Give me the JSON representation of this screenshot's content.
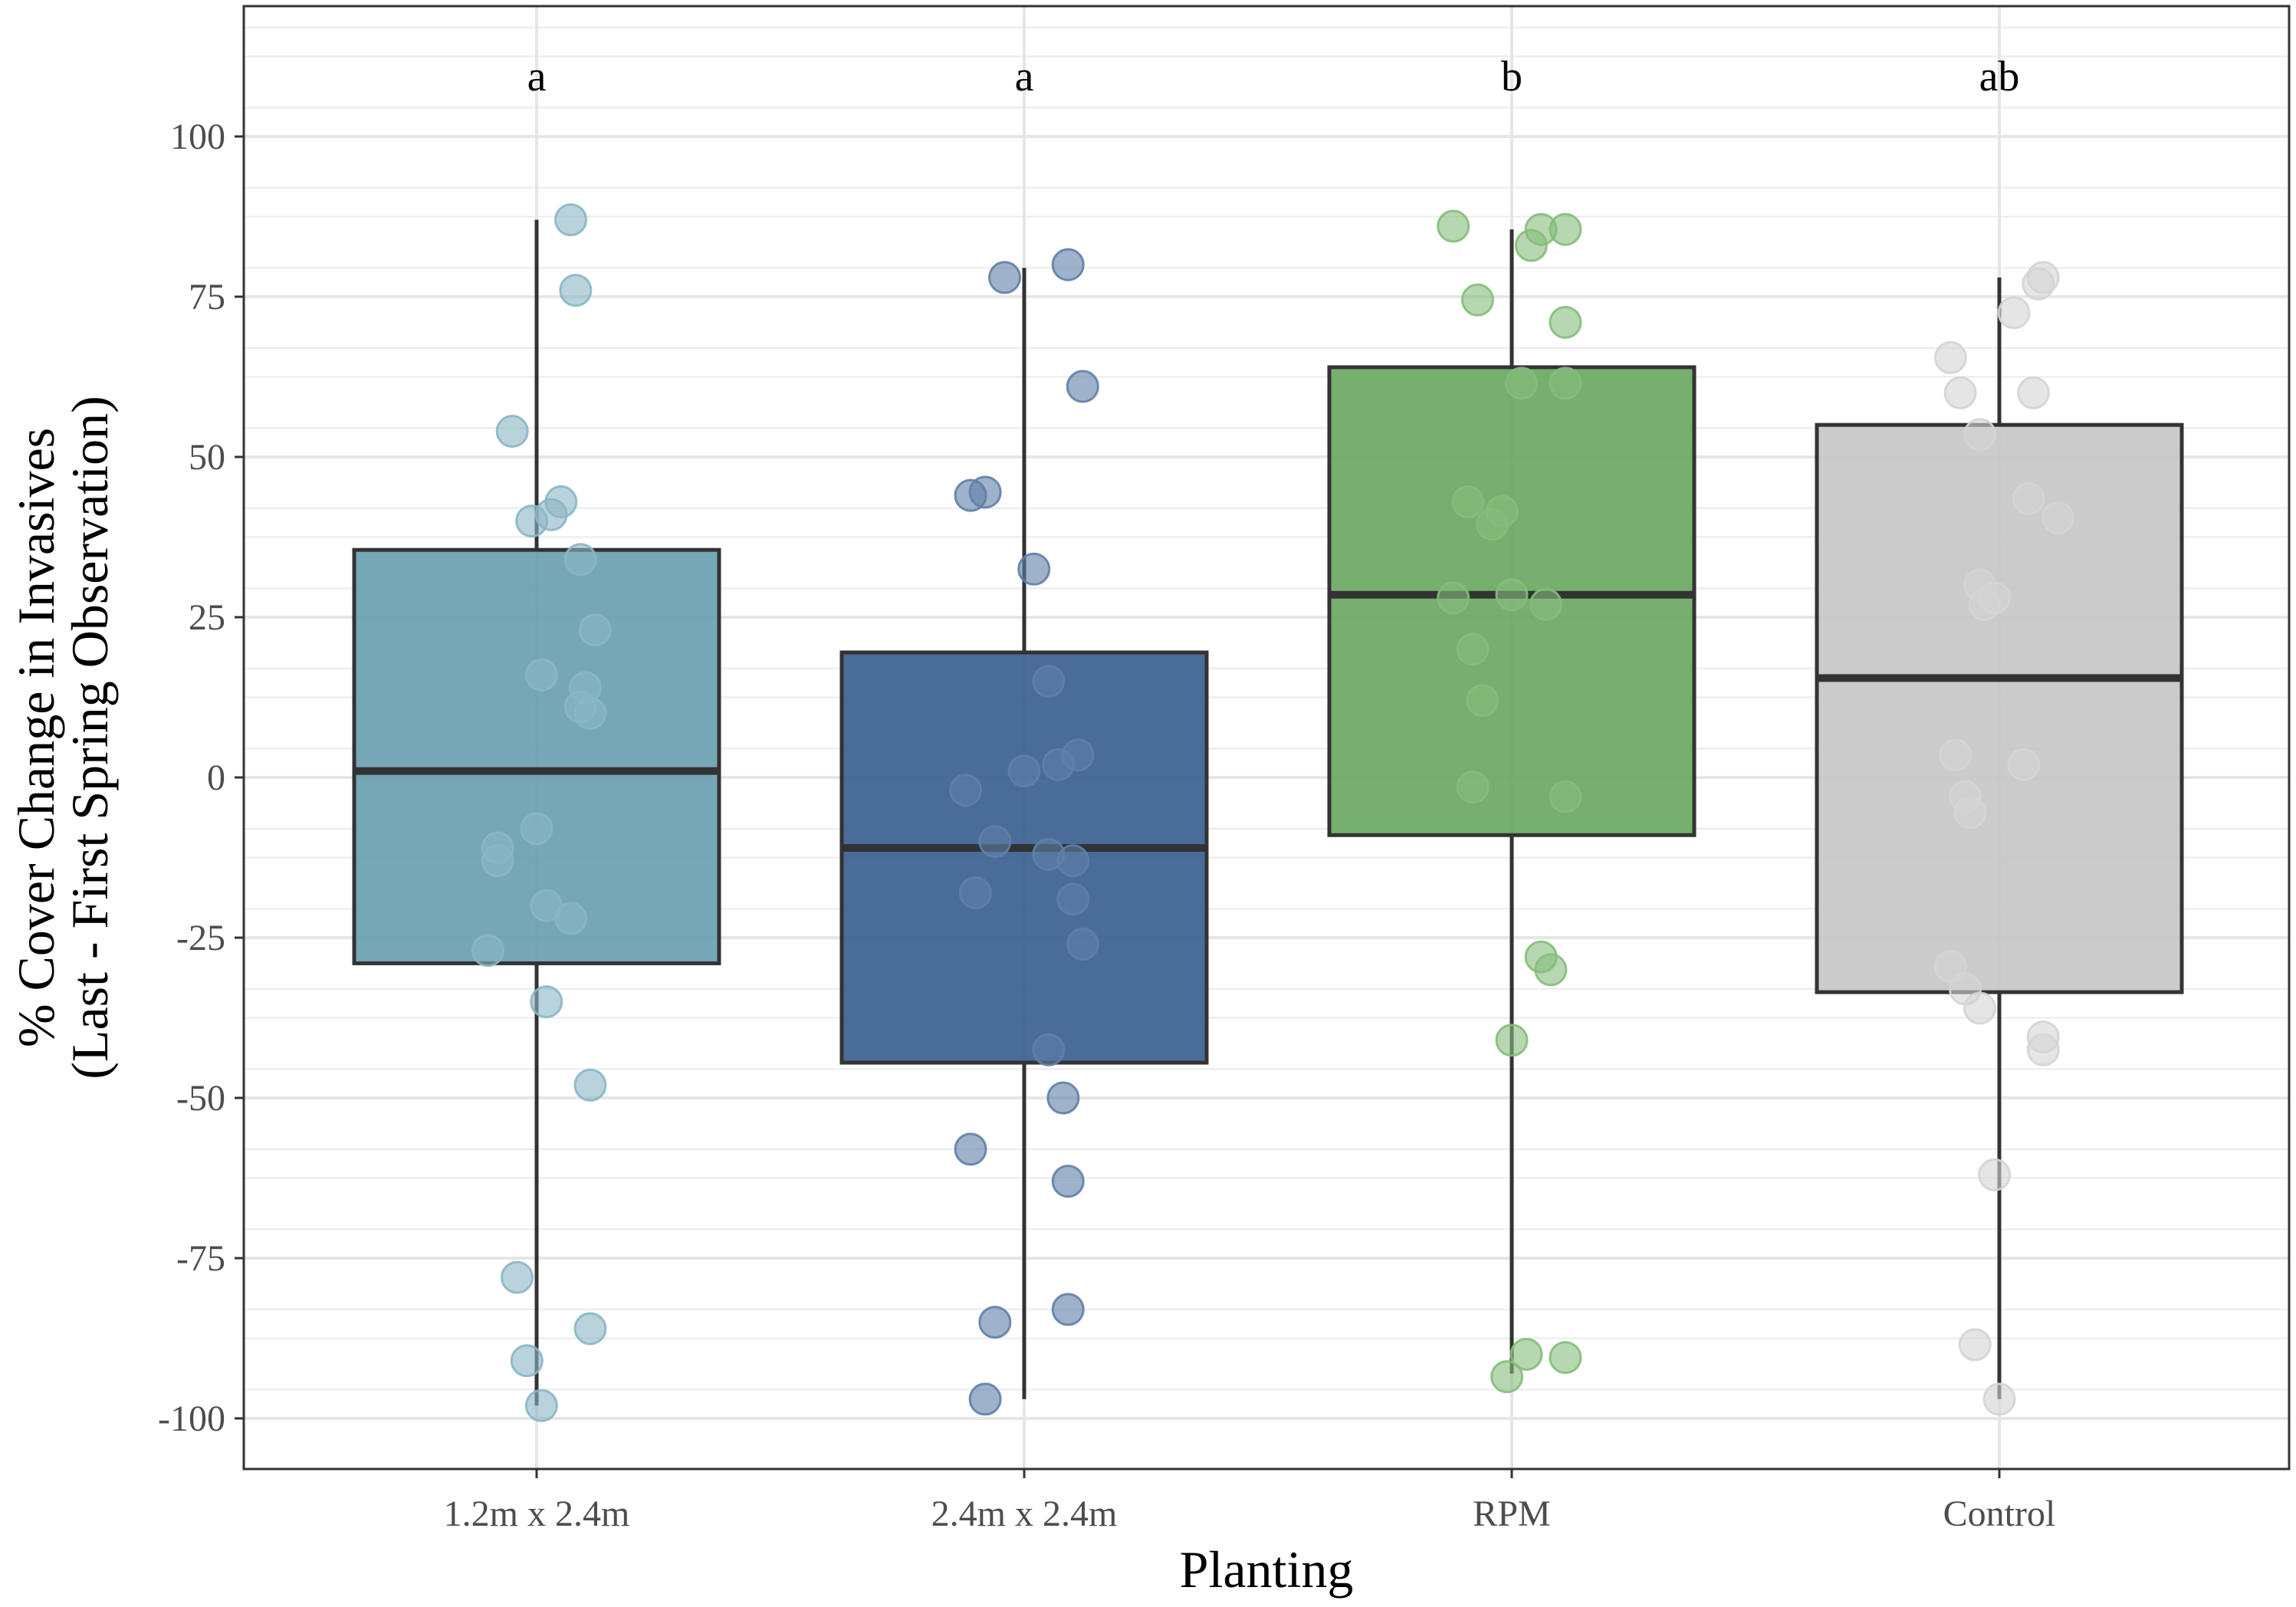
{
  "chart_data": {
    "type": "box",
    "xlabel": "Planting",
    "ylabel_lines": [
      "% Cover Change in Invasives",
      "(Last - First Spring Observation)"
    ],
    "ylim": [
      -108,
      120
    ],
    "yticks": [
      100,
      75,
      50,
      25,
      0,
      -25,
      -50,
      -75,
      -100
    ],
    "ytick_labels": [
      "100",
      "75",
      "50",
      "25",
      "0",
      "-25",
      "-50",
      "-75",
      "-100"
    ],
    "categories": [
      "1.2m x 2.4m",
      "2.4m x 2.4m",
      "RPM",
      "Control"
    ],
    "groups": [
      {
        "name": "1.2m x 2.4m",
        "letter": "a",
        "color": "#6a9fb0",
        "point_color": "#8ab6c4",
        "q1": -29,
        "median": 1,
        "q3": 35.5,
        "whisker_low": -98,
        "whisker_high": 87,
        "points": [
          {
            "dx": 0.07,
            "y": 87
          },
          {
            "dx": 0.08,
            "y": 76
          },
          {
            "dx": -0.05,
            "y": 54
          },
          {
            "dx": 0.05,
            "y": 43
          },
          {
            "dx": 0.03,
            "y": 41
          },
          {
            "dx": -0.01,
            "y": 40
          },
          {
            "dx": 0.09,
            "y": 34
          },
          {
            "dx": 0.12,
            "y": 23
          },
          {
            "dx": 0.01,
            "y": 16
          },
          {
            "dx": 0.1,
            "y": 14
          },
          {
            "dx": 0.09,
            "y": 11
          },
          {
            "dx": 0.11,
            "y": 10
          },
          {
            "dx": 0.0,
            "y": -8
          },
          {
            "dx": -0.08,
            "y": -11
          },
          {
            "dx": -0.08,
            "y": -13
          },
          {
            "dx": 0.02,
            "y": -20
          },
          {
            "dx": 0.07,
            "y": -22
          },
          {
            "dx": -0.1,
            "y": -27
          },
          {
            "dx": 0.02,
            "y": -35
          },
          {
            "dx": 0.11,
            "y": -48
          },
          {
            "dx": -0.04,
            "y": -78
          },
          {
            "dx": -0.02,
            "y": -91
          },
          {
            "dx": 0.11,
            "y": -86
          },
          {
            "dx": 0.01,
            "y": -98
          }
        ]
      },
      {
        "name": "2.4m x 2.4m",
        "letter": "a",
        "color": "#3a5f8f",
        "point_color": "#5f7fa8",
        "q1": -44.5,
        "median": -11,
        "q3": 19.5,
        "whisker_low": -97,
        "whisker_high": 79.5,
        "points": [
          {
            "dx": -0.04,
            "y": 78
          },
          {
            "dx": 0.09,
            "y": 80
          },
          {
            "dx": 0.12,
            "y": 61
          },
          {
            "dx": -0.11,
            "y": 44
          },
          {
            "dx": -0.08,
            "y": 44.5
          },
          {
            "dx": 0.02,
            "y": 32.5
          },
          {
            "dx": 0.05,
            "y": 15
          },
          {
            "dx": 0.0,
            "y": 1
          },
          {
            "dx": 0.07,
            "y": 2
          },
          {
            "dx": 0.11,
            "y": 3.5
          },
          {
            "dx": -0.12,
            "y": -2
          },
          {
            "dx": -0.06,
            "y": -10
          },
          {
            "dx": 0.05,
            "y": -12
          },
          {
            "dx": 0.1,
            "y": -13
          },
          {
            "dx": -0.1,
            "y": -18
          },
          {
            "dx": 0.1,
            "y": -19
          },
          {
            "dx": 0.12,
            "y": -26
          },
          {
            "dx": 0.05,
            "y": -42.5
          },
          {
            "dx": 0.08,
            "y": -50
          },
          {
            "dx": -0.11,
            "y": -58
          },
          {
            "dx": 0.09,
            "y": -63
          },
          {
            "dx": -0.06,
            "y": -85
          },
          {
            "dx": 0.09,
            "y": -83
          },
          {
            "dx": -0.08,
            "y": -97
          }
        ]
      },
      {
        "name": "RPM",
        "letter": "b",
        "color": "#6aa862",
        "point_color": "#85bd7c",
        "q1": -9,
        "median": 28.5,
        "q3": 64,
        "whisker_low": -93,
        "whisker_high": 85.5,
        "points": [
          {
            "dx": -0.12,
            "y": 86
          },
          {
            "dx": 0.04,
            "y": 83
          },
          {
            "dx": 0.06,
            "y": 85.5
          },
          {
            "dx": 0.11,
            "y": 85.5
          },
          {
            "dx": -0.07,
            "y": 74.5
          },
          {
            "dx": 0.11,
            "y": 71
          },
          {
            "dx": 0.02,
            "y": 61.5
          },
          {
            "dx": 0.11,
            "y": 61.5
          },
          {
            "dx": -0.09,
            "y": 43
          },
          {
            "dx": -0.04,
            "y": 39.5
          },
          {
            "dx": -0.02,
            "y": 41.5
          },
          {
            "dx": -0.12,
            "y": 28
          },
          {
            "dx": 0.0,
            "y": 28.5
          },
          {
            "dx": 0.07,
            "y": 27
          },
          {
            "dx": -0.08,
            "y": 20
          },
          {
            "dx": -0.06,
            "y": 12
          },
          {
            "dx": -0.08,
            "y": -1.5
          },
          {
            "dx": 0.11,
            "y": -3
          },
          {
            "dx": 0.06,
            "y": -28
          },
          {
            "dx": 0.08,
            "y": -30
          },
          {
            "dx": 0.0,
            "y": -41
          },
          {
            "dx": 0.03,
            "y": -90
          },
          {
            "dx": 0.11,
            "y": -90.5
          },
          {
            "dx": -0.01,
            "y": -93.5
          }
        ]
      },
      {
        "name": "Control",
        "letter": "ab",
        "color": "#c7c7c7",
        "point_color": "#d4d4d4",
        "q1": -33.5,
        "median": 15.5,
        "q3": 55,
        "whisker_low": -97,
        "whisker_high": 78,
        "points": [
          {
            "dx": 0.09,
            "y": 78
          },
          {
            "dx": 0.08,
            "y": 77
          },
          {
            "dx": 0.03,
            "y": 72.5
          },
          {
            "dx": -0.1,
            "y": 65.5
          },
          {
            "dx": -0.08,
            "y": 60
          },
          {
            "dx": 0.07,
            "y": 60
          },
          {
            "dx": -0.04,
            "y": 53.5
          },
          {
            "dx": 0.06,
            "y": 43.5
          },
          {
            "dx": 0.12,
            "y": 40.5
          },
          {
            "dx": -0.04,
            "y": 30
          },
          {
            "dx": -0.03,
            "y": 27
          },
          {
            "dx": -0.01,
            "y": 28
          },
          {
            "dx": -0.09,
            "y": 3.5
          },
          {
            "dx": 0.05,
            "y": 2
          },
          {
            "dx": -0.07,
            "y": -3
          },
          {
            "dx": -0.06,
            "y": -5.5
          },
          {
            "dx": -0.1,
            "y": -29.5
          },
          {
            "dx": -0.07,
            "y": -33
          },
          {
            "dx": -0.04,
            "y": -36
          },
          {
            "dx": 0.09,
            "y": -40.5
          },
          {
            "dx": 0.09,
            "y": -42.5
          },
          {
            "dx": -0.01,
            "y": -62
          },
          {
            "dx": -0.05,
            "y": -88.5
          },
          {
            "dx": 0.0,
            "y": -97
          }
        ]
      }
    ]
  }
}
